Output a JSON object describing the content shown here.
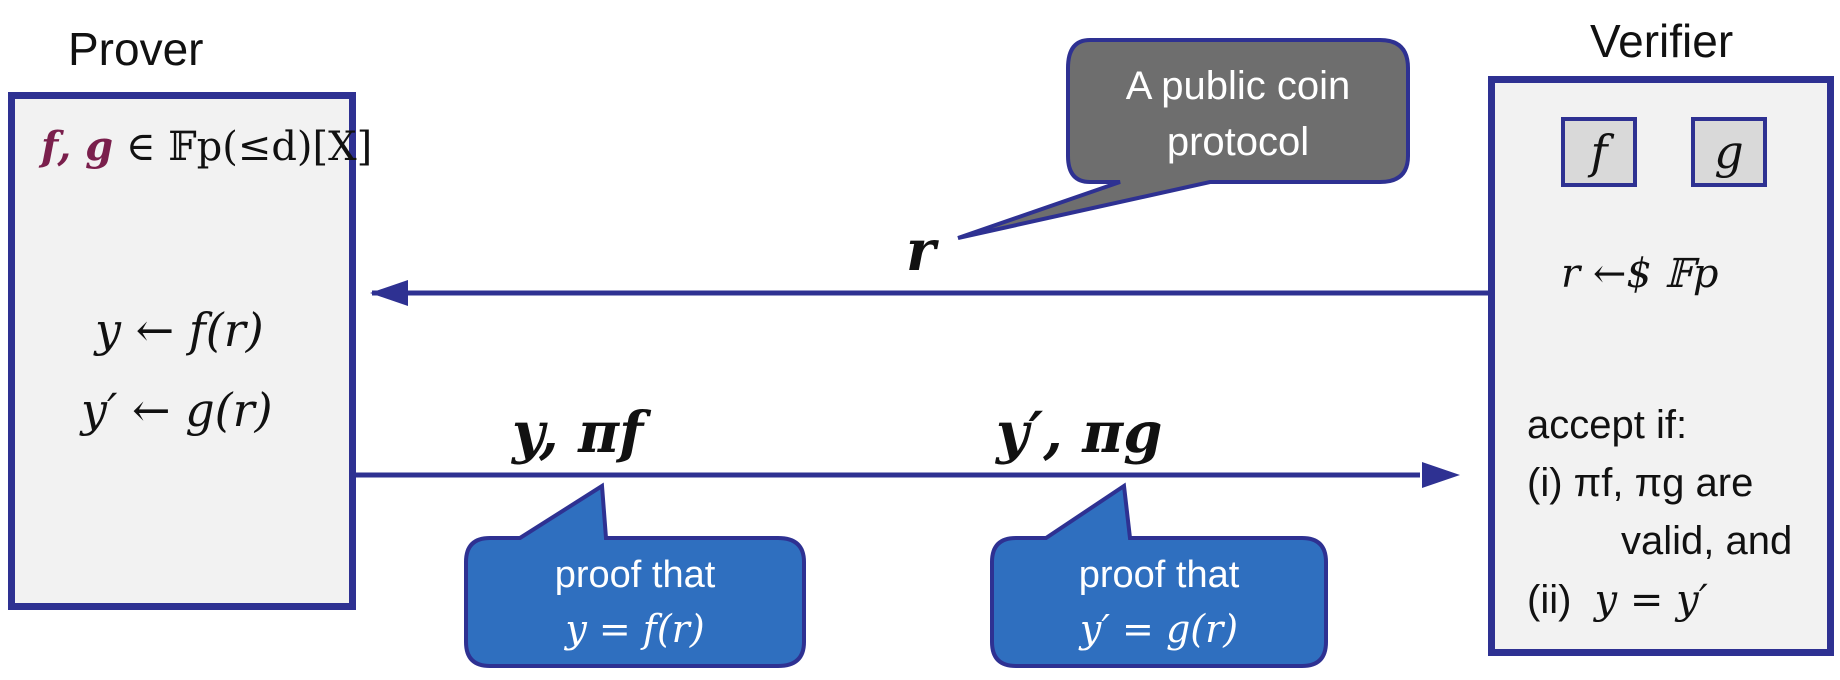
{
  "prover": {
    "title": "Prover",
    "poly_prefix": "f, g",
    "poly_rest": "∈ 𝔽p(≤d)[X]",
    "line1": "y ← f(r)",
    "line2": "y′ ← g(r)"
  },
  "verifier": {
    "title": "Verifier",
    "commit_f": "f",
    "commit_g": "g",
    "sample": "r ←$ 𝔽p",
    "accept_heading": "accept if:",
    "cond1_a": "(i) πf, πg are",
    "cond1_b": "valid, and",
    "cond2_label": "(ii)",
    "cond2_eq": "y = y′"
  },
  "messages": {
    "challenge": "r",
    "resp_f": "y,  πf",
    "resp_g": "y′,  πg"
  },
  "callouts": {
    "public_coin_line1": "A public coin",
    "public_coin_line2": "protocol",
    "proof_f_line1": "proof that",
    "proof_f_line2": "y = f(r)",
    "proof_g_line1": "proof that",
    "proof_g_line2": "y′ = g(r)"
  },
  "colors": {
    "border": "#2e3192",
    "box_fill": "#f2f2f2",
    "gray_callout": "#6e6e6e",
    "blue_callout": "#2f6fbf",
    "poly_accent": "#7a1f4c"
  }
}
